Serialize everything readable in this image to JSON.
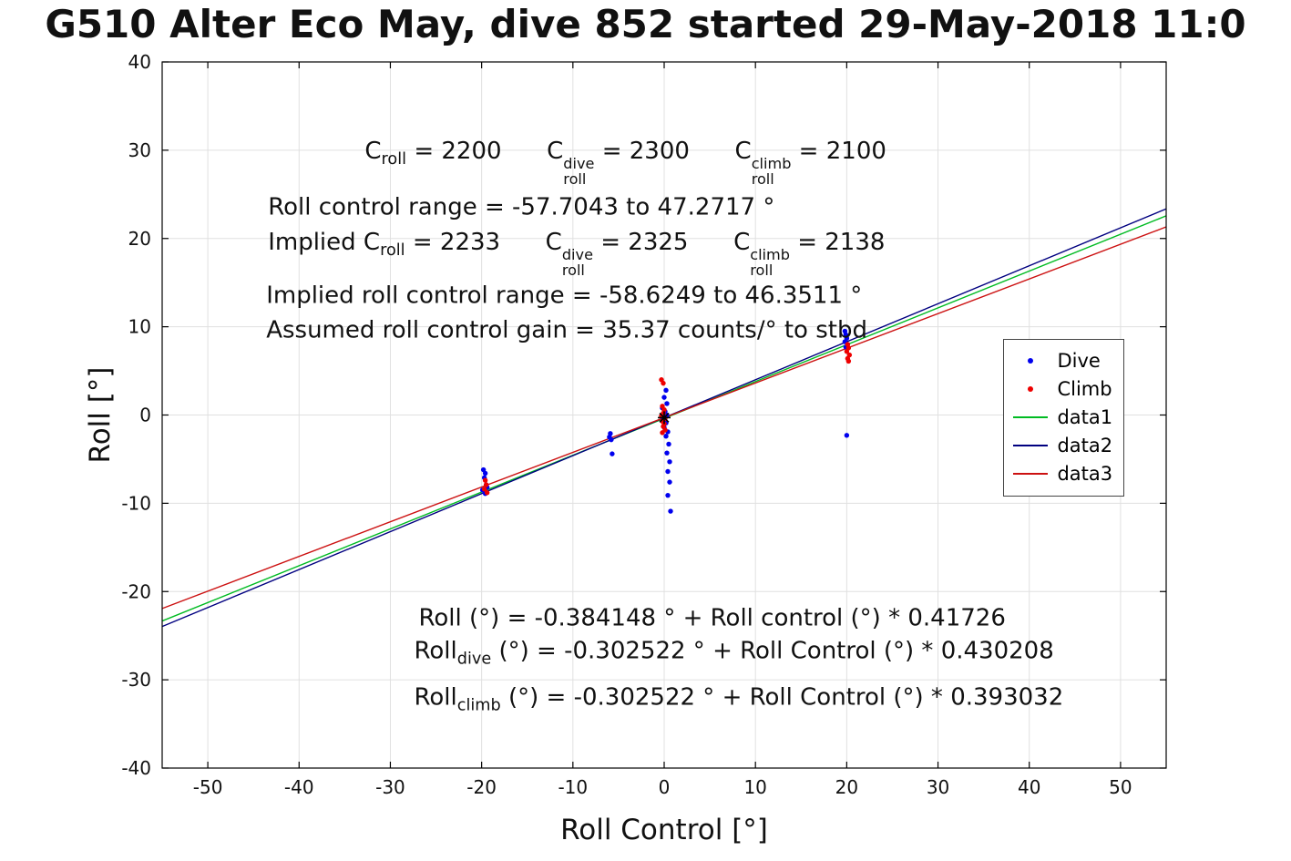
{
  "chart_data": {
    "type": "scatter",
    "title": "G510 Alter Eco May, dive 852 started 29-May-2018 11:0",
    "xlabel": "Roll Control [°]",
    "ylabel": "Roll [°]",
    "xlim": [
      -55,
      55
    ],
    "ylim": [
      -40,
      40
    ],
    "xticks": [
      -50,
      -40,
      -30,
      -20,
      -10,
      0,
      10,
      20,
      30,
      40,
      50
    ],
    "yticks": [
      -40,
      -30,
      -20,
      -10,
      0,
      10,
      20,
      30,
      40
    ],
    "grid": true,
    "colors": {
      "dive": "#0000ee",
      "climb": "#ee0000",
      "data1": "#00bb22",
      "data2": "#000080",
      "data3": "#cc1111",
      "grid": "#e0e0e0",
      "axis": "#000000",
      "marker": "#000000"
    },
    "series": [
      {
        "name": "Dive",
        "type": "scatter",
        "color_key": "dive",
        "points": [
          [
            -19.8,
            -6.2
          ],
          [
            -19.6,
            -6.6
          ],
          [
            -19.7,
            -7.1
          ],
          [
            -19.5,
            -7.9
          ],
          [
            -19.9,
            -8.5
          ],
          [
            -19.6,
            -8.9
          ],
          [
            -19.4,
            -8.2
          ],
          [
            -5.9,
            -2.1
          ],
          [
            -6.0,
            -2.5
          ],
          [
            -5.8,
            -2.8
          ],
          [
            -5.7,
            -4.4
          ],
          [
            0.2,
            2.8
          ],
          [
            0.0,
            2.0
          ],
          [
            0.3,
            1.3
          ],
          [
            -0.2,
            0.8
          ],
          [
            0.1,
            0.4
          ],
          [
            0.3,
            0.0
          ],
          [
            -0.1,
            -0.4
          ],
          [
            0.2,
            -0.9
          ],
          [
            0.0,
            -1.4
          ],
          [
            0.4,
            -1.9
          ],
          [
            0.2,
            -2.4
          ],
          [
            0.5,
            -3.3
          ],
          [
            0.3,
            -4.3
          ],
          [
            0.6,
            -5.3
          ],
          [
            0.4,
            -6.4
          ],
          [
            0.6,
            -7.6
          ],
          [
            0.4,
            -9.1
          ],
          [
            0.7,
            -10.9
          ],
          [
            19.8,
            9.5
          ],
          [
            19.9,
            9.1
          ],
          [
            20.0,
            8.7
          ],
          [
            19.8,
            8.3
          ],
          [
            20.1,
            8.0
          ],
          [
            19.9,
            7.7
          ],
          [
            20.0,
            -2.3
          ]
        ]
      },
      {
        "name": "Climb",
        "type": "scatter",
        "color_key": "climb",
        "points": [
          [
            -19.6,
            -7.4
          ],
          [
            -19.5,
            -7.9
          ],
          [
            -19.7,
            -8.4
          ],
          [
            -19.4,
            -8.8
          ],
          [
            -0.3,
            4.0
          ],
          [
            -0.1,
            3.6
          ],
          [
            -0.2,
            1.0
          ],
          [
            0.0,
            0.6
          ],
          [
            -0.1,
            0.2
          ],
          [
            -0.3,
            -0.1
          ],
          [
            0.1,
            -0.4
          ],
          [
            -0.2,
            -0.7
          ],
          [
            0.0,
            -1.0
          ],
          [
            -0.1,
            -1.3
          ],
          [
            0.1,
            -1.7
          ],
          [
            -0.2,
            -2.0
          ],
          [
            20.1,
            8.0
          ],
          [
            20.2,
            7.6
          ],
          [
            20.0,
            7.2
          ],
          [
            20.3,
            6.8
          ],
          [
            20.1,
            6.4
          ],
          [
            20.2,
            6.1
          ]
        ]
      },
      {
        "name": "data1",
        "type": "line",
        "color_key": "data1",
        "intercept": -0.384148,
        "slope": 0.41726
      },
      {
        "name": "data2",
        "type": "line",
        "color_key": "data2",
        "intercept": -0.302522,
        "slope": 0.430208
      },
      {
        "name": "data3",
        "type": "line",
        "color_key": "data3",
        "intercept": -0.302522,
        "slope": 0.393032
      }
    ],
    "origin_marker": {
      "x": 0,
      "y": -0.3,
      "symbol": "asterisk",
      "color_key": "marker"
    },
    "legend": {
      "position": {
        "x_frac": 0.838,
        "y_frac": 0.392
      },
      "entries": [
        {
          "label": "Dive",
          "marker": "dot",
          "color_key": "dive"
        },
        {
          "label": "Climb",
          "marker": "dot",
          "color_key": "climb"
        },
        {
          "label": "data1",
          "marker": "line",
          "color_key": "data1"
        },
        {
          "label": "data2",
          "marker": "line",
          "color_key": "data2"
        },
        {
          "label": "data3",
          "marker": "line",
          "color_key": "data3"
        }
      ]
    },
    "annotations": [
      {
        "x": -32.8,
        "y": 28.6,
        "segments": [
          {
            "text": "C"
          },
          {
            "sub": "roll"
          },
          {
            "text": " = 2200      "
          },
          {
            "text": "C"
          },
          {
            "stack": {
              "top": "dive",
              "bottom": "roll"
            }
          },
          {
            "text": " = 2300      "
          },
          {
            "text": "C"
          },
          {
            "stack": {
              "top": "climb",
              "bottom": "roll"
            }
          },
          {
            "text": " = 2100"
          }
        ]
      },
      {
        "x": -43.4,
        "y": 23.5,
        "segments": [
          {
            "text": "Roll control range = -57.7043 to 47.2717 °"
          }
        ]
      },
      {
        "x": -43.4,
        "y": 18.3,
        "segments": [
          {
            "text": "Implied C"
          },
          {
            "sub": "roll"
          },
          {
            "text": " = 2233      "
          },
          {
            "text": "C"
          },
          {
            "stack": {
              "top": "dive",
              "bottom": "roll"
            }
          },
          {
            "text": " = 2325      "
          },
          {
            "text": "C"
          },
          {
            "stack": {
              "top": "climb",
              "bottom": "roll"
            }
          },
          {
            "text": " = 2138"
          }
        ]
      },
      {
        "x": -43.6,
        "y": 13.5,
        "segments": [
          {
            "text": "Implied roll control range = -58.6249 to 46.3511 °"
          }
        ]
      },
      {
        "x": -43.6,
        "y": 9.6,
        "segments": [
          {
            "text": "Assumed roll control gain = 35.37 counts/° to stbd"
          }
        ]
      },
      {
        "x": -26.9,
        "y": -23.1,
        "segments": [
          {
            "text": "Roll (°) = -0.384148 ° + Roll control (°) * 0.41726"
          }
        ]
      },
      {
        "x": -27.4,
        "y": -27.0,
        "segments": [
          {
            "text": "Roll"
          },
          {
            "sub": "dive"
          },
          {
            "text": " (°) = -0.302522 ° + Roll Control (°) * 0.430208"
          }
        ]
      },
      {
        "x": -27.4,
        "y": -32.3,
        "segments": [
          {
            "text": "Roll"
          },
          {
            "sub": "climb"
          },
          {
            "text": " (°) = -0.302522 ° + Roll Control (°) * 0.393032"
          }
        ]
      }
    ]
  }
}
